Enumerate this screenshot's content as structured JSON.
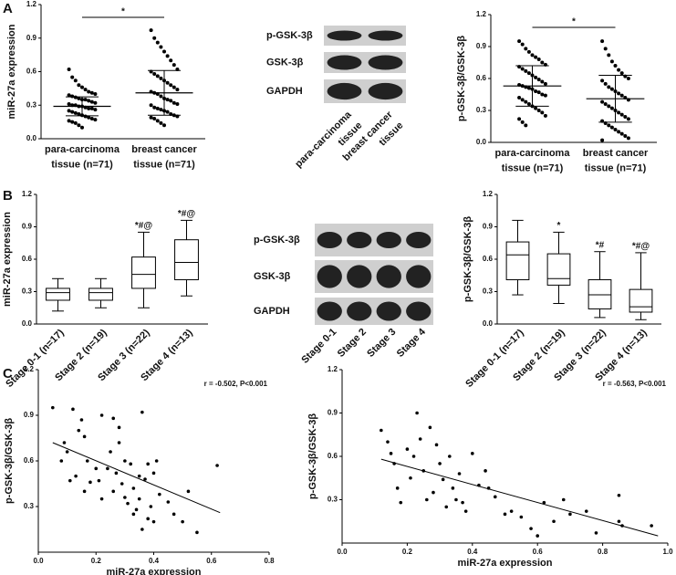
{
  "panels": [
    "A",
    "B",
    "C"
  ],
  "blots": [
    {
      "rows": [
        "p-GSK-3β",
        "GSK-3β",
        "GAPDH"
      ],
      "lanes": [
        "para-carcinoma\ntissue",
        "breast cancer\ntissue"
      ]
    },
    {
      "rows": [
        "p-GSK-3β",
        "GSK-3β",
        "GAPDH"
      ],
      "lanes": [
        "Stage 0-1",
        "Stage 2",
        "Stage 3",
        "Stage 4"
      ]
    }
  ],
  "chart_data": [
    {
      "type": "dot",
      "ylabel": "miR-27a expression",
      "categories": [
        "para-carcinoma\ntissue (n=71)",
        "breast cancer\ntissue (n=71)"
      ],
      "values": [
        [
          0.62,
          0.55,
          0.52,
          0.48,
          0.46,
          0.44,
          0.42,
          0.41,
          0.4,
          0.39,
          0.38,
          0.37,
          0.36,
          0.35,
          0.35,
          0.34,
          0.33,
          0.32,
          0.31,
          0.3,
          0.3,
          0.29,
          0.29,
          0.28,
          0.27,
          0.27,
          0.26,
          0.25,
          0.24,
          0.23,
          0.22,
          0.21,
          0.2,
          0.19,
          0.18,
          0.17,
          0.16,
          0.15,
          0.14,
          0.12,
          0.1
        ],
        [
          0.97,
          0.9,
          0.86,
          0.82,
          0.78,
          0.74,
          0.7,
          0.66,
          0.62,
          0.6,
          0.58,
          0.56,
          0.54,
          0.52,
          0.5,
          0.48,
          0.46,
          0.44,
          0.42,
          0.41,
          0.4,
          0.38,
          0.36,
          0.35,
          0.34,
          0.32,
          0.31,
          0.3,
          0.28,
          0.27,
          0.26,
          0.25,
          0.24,
          0.22,
          0.21,
          0.2,
          0.19,
          0.18,
          0.16,
          0.14,
          0.12
        ]
      ],
      "means": [
        0.29,
        0.41
      ],
      "sds": [
        0.085,
        0.2
      ],
      "significance": "*",
      "ylim": [
        0,
        1.2
      ],
      "yticks": [
        {
          "value": 0,
          "label": "0.0"
        },
        0.3,
        0.6,
        0.9,
        1.2
      ]
    },
    {
      "type": "dot",
      "ylabel": "p-GSK-3β/GSK-3β",
      "categories": [
        "para-carcinoma\ntissue (n=71)",
        "breast cancer\ntissue (n=71)"
      ],
      "values": [
        [
          0.95,
          0.92,
          0.88,
          0.85,
          0.82,
          0.8,
          0.78,
          0.75,
          0.73,
          0.71,
          0.69,
          0.67,
          0.65,
          0.63,
          0.61,
          0.59,
          0.57,
          0.55,
          0.54,
          0.53,
          0.52,
          0.51,
          0.5,
          0.48,
          0.47,
          0.45,
          0.44,
          0.42,
          0.4,
          0.38,
          0.36,
          0.34,
          0.32,
          0.3,
          0.28,
          0.25,
          0.22,
          0.19,
          0.16
        ],
        [
          0.95,
          0.88,
          0.82,
          0.76,
          0.72,
          0.68,
          0.65,
          0.62,
          0.6,
          0.58,
          0.55,
          0.52,
          0.5,
          0.48,
          0.46,
          0.44,
          0.42,
          0.4,
          0.38,
          0.36,
          0.34,
          0.32,
          0.3,
          0.28,
          0.26,
          0.24,
          0.22,
          0.2,
          0.18,
          0.16,
          0.14,
          0.12,
          0.1,
          0.08,
          0.06,
          0.04,
          0.02
        ]
      ],
      "means": [
        0.53,
        0.41
      ],
      "sds": [
        0.19,
        0.22
      ],
      "significance": "*",
      "ylim": [
        0,
        1.2
      ],
      "yticks": [
        {
          "value": 0,
          "label": "0.0"
        },
        0.3,
        0.6,
        0.9,
        1.2
      ]
    },
    {
      "type": "box",
      "ylabel": "miR-27a expression",
      "categories": [
        "Stage 0-1 (n=17)",
        "Stage 2 (n=19)",
        "Stage 3 (n=22)",
        "Stage 4 (n=13)"
      ],
      "boxes": [
        {
          "min": 0.12,
          "q1": 0.22,
          "median": 0.29,
          "q3": 0.33,
          "max": 0.42
        },
        {
          "min": 0.15,
          "q1": 0.22,
          "median": 0.29,
          "q3": 0.33,
          "max": 0.42
        },
        {
          "min": 0.15,
          "q1": 0.33,
          "median": 0.46,
          "q3": 0.62,
          "max": 0.85
        },
        {
          "min": 0.26,
          "q1": 0.41,
          "median": 0.57,
          "q3": 0.78,
          "max": 0.96
        }
      ],
      "annotations": [
        null,
        null,
        "*#@",
        "*#@"
      ],
      "ylim": [
        0,
        1.2
      ],
      "yticks": [
        {
          "value": 0,
          "label": "0.0"
        },
        0.3,
        0.6,
        0.9,
        1.2
      ]
    },
    {
      "type": "box",
      "ylabel": "p-GSK-3β/GSK-3β",
      "categories": [
        "Stage 0-1 (n=17)",
        "Stage 2 (n=19)",
        "Stage 3 (n=22)",
        "Stage 4 (n=13)"
      ],
      "boxes": [
        {
          "min": 0.27,
          "q1": 0.41,
          "median": 0.64,
          "q3": 0.76,
          "max": 0.96
        },
        {
          "min": 0.19,
          "q1": 0.36,
          "median": 0.42,
          "q3": 0.65,
          "max": 0.85
        },
        {
          "min": 0.06,
          "q1": 0.14,
          "median": 0.27,
          "q3": 0.41,
          "max": 0.67
        },
        {
          "min": 0.04,
          "q1": 0.11,
          "median": 0.16,
          "q3": 0.32,
          "max": 0.66
        }
      ],
      "annotations": [
        null,
        "*",
        "*#",
        "*#@"
      ],
      "ylim": [
        0,
        1.2
      ],
      "yticks": [
        {
          "value": 0,
          "label": "0.0"
        },
        0.3,
        0.6,
        0.9,
        1.2
      ]
    },
    {
      "type": "scatter",
      "xlabel": "miR-27a expression",
      "ylabel": "p-GSK-3β/GSK-3β",
      "annotation": "r = -0.502, P<0.001",
      "x": [
        0.05,
        0.09,
        0.08,
        0.1,
        0.12,
        0.13,
        0.11,
        0.14,
        0.15,
        0.16,
        0.17,
        0.18,
        0.16,
        0.2,
        0.21,
        0.22,
        0.22,
        0.24,
        0.25,
        0.26,
        0.26,
        0.27,
        0.28,
        0.28,
        0.29,
        0.3,
        0.3,
        0.31,
        0.32,
        0.33,
        0.33,
        0.34,
        0.35,
        0.35,
        0.36,
        0.36,
        0.37,
        0.38,
        0.38,
        0.39,
        0.4,
        0.4,
        0.41,
        0.42,
        0.45,
        0.47,
        0.5,
        0.52,
        0.55,
        0.62
      ],
      "y": [
        0.95,
        0.72,
        0.6,
        0.66,
        0.94,
        0.5,
        0.47,
        0.8,
        0.87,
        0.76,
        0.6,
        0.46,
        0.4,
        0.55,
        0.47,
        0.9,
        0.35,
        0.55,
        0.66,
        0.4,
        0.88,
        0.52,
        0.82,
        0.72,
        0.45,
        0.6,
        0.36,
        0.32,
        0.58,
        0.25,
        0.42,
        0.28,
        0.5,
        0.35,
        0.15,
        0.92,
        0.48,
        0.58,
        0.22,
        0.3,
        0.52,
        0.2,
        0.6,
        0.38,
        0.33,
        0.25,
        0.2,
        0.4,
        0.13,
        0.57
      ],
      "fit": {
        "x": [
          0.05,
          0.63
        ],
        "y": [
          0.72,
          0.26
        ]
      },
      "xlim": [
        0,
        0.8
      ],
      "xticks": [
        {
          "value": 0,
          "label": "0.0"
        },
        0.2,
        0.4,
        0.6,
        0.8
      ],
      "ylim": [
        0,
        1.2
      ],
      "yticks": [
        0.3,
        0.6,
        0.9,
        1.2
      ]
    },
    {
      "type": "scatter",
      "xlabel": "miR-27a expression",
      "ylabel": "p-GSK-3β/GSK-3β",
      "annotation": "r = -0.563, P<0.001",
      "x": [
        0.12,
        0.14,
        0.15,
        0.16,
        0.17,
        0.18,
        0.2,
        0.21,
        0.22,
        0.23,
        0.24,
        0.25,
        0.26,
        0.27,
        0.28,
        0.29,
        0.3,
        0.31,
        0.32,
        0.33,
        0.34,
        0.35,
        0.36,
        0.37,
        0.38,
        0.4,
        0.42,
        0.44,
        0.45,
        0.47,
        0.5,
        0.52,
        0.55,
        0.58,
        0.6,
        0.62,
        0.65,
        0.68,
        0.7,
        0.75,
        0.78,
        0.85,
        0.85,
        0.86,
        0.95
      ],
      "y": [
        0.78,
        0.7,
        0.62,
        0.55,
        0.38,
        0.28,
        0.65,
        0.45,
        0.6,
        0.9,
        0.72,
        0.5,
        0.3,
        0.8,
        0.35,
        0.68,
        0.55,
        0.44,
        0.25,
        0.6,
        0.38,
        0.3,
        0.48,
        0.28,
        0.22,
        0.62,
        0.4,
        0.5,
        0.38,
        0.32,
        0.2,
        0.22,
        0.18,
        0.1,
        0.05,
        0.28,
        0.15,
        0.3,
        0.2,
        0.22,
        0.07,
        0.33,
        0.15,
        0.12,
        0.12
      ],
      "fit": {
        "x": [
          0.12,
          0.97
        ],
        "y": [
          0.58,
          0.05
        ]
      },
      "xlim": [
        0,
        1
      ],
      "xticks": [
        {
          "value": 0,
          "label": "0.0"
        },
        0.2,
        0.4,
        0.6,
        0.8,
        {
          "value": 1,
          "label": "1.0"
        }
      ],
      "ylim": [
        0,
        1.2
      ],
      "yticks": [
        0.3,
        0.6,
        0.9,
        1.2
      ]
    }
  ]
}
